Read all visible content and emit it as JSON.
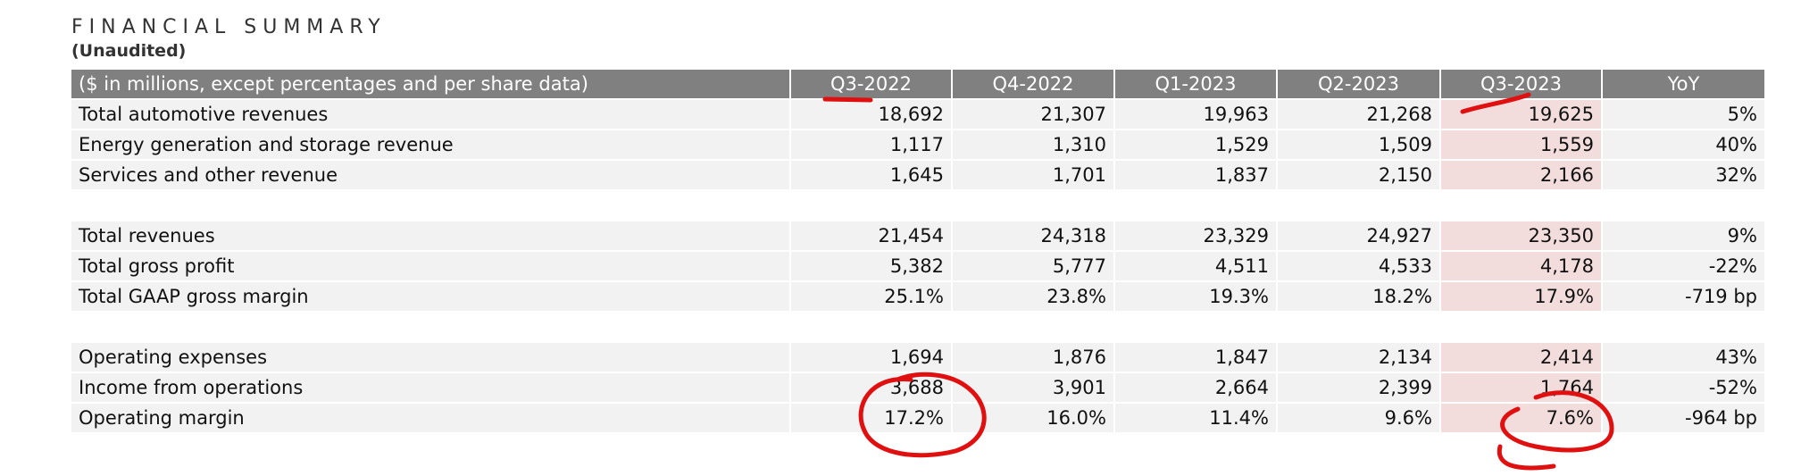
{
  "header": {
    "title": "FINANCIAL SUMMARY",
    "subtitle": "(Unaudited)"
  },
  "table": {
    "columns": [
      "($ in millions, except percentages and per share data)",
      "Q3-2022",
      "Q4-2022",
      "Q1-2023",
      "Q2-2023",
      "Q3-2023",
      "YoY"
    ],
    "groups": [
      [
        [
          "Total automotive revenues",
          "18,692",
          "21,307",
          "19,963",
          "21,268",
          "19,625",
          "5%"
        ],
        [
          "Energy generation and storage revenue",
          "1,117",
          "1,310",
          "1,529",
          "1,509",
          "1,559",
          "40%"
        ],
        [
          "Services and other revenue",
          "1,645",
          "1,701",
          "1,837",
          "2,150",
          "2,166",
          "32%"
        ]
      ],
      [
        [
          "Total revenues",
          "21,454",
          "24,318",
          "23,329",
          "24,927",
          "23,350",
          "9%"
        ],
        [
          "Total gross profit",
          "5,382",
          "5,777",
          "4,511",
          "4,533",
          "4,178",
          "-22%"
        ],
        [
          "Total GAAP gross margin",
          "25.1%",
          "23.8%",
          "19.3%",
          "18.2%",
          "17.9%",
          "-719 bp"
        ]
      ],
      [
        [
          "Operating expenses",
          "1,694",
          "1,876",
          "1,847",
          "2,134",
          "2,414",
          "43%"
        ],
        [
          "Income from operations",
          "3,688",
          "3,901",
          "2,664",
          "2,399",
          "1,764",
          "-52%"
        ],
        [
          "Operating margin",
          "17.2%",
          "16.0%",
          "11.4%",
          "9.6%",
          "7.6%",
          "-964 bp"
        ]
      ]
    ]
  }
}
